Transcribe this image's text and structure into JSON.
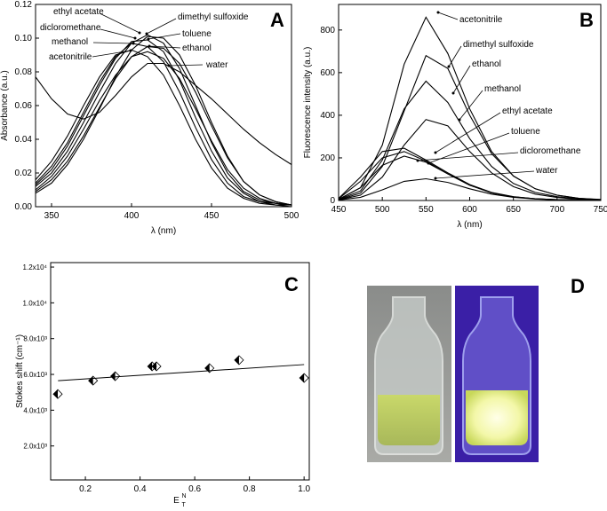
{
  "chart_data": [
    {
      "type": "line",
      "panel": "A",
      "y_label": "Absorbance (a.u.)",
      "x_label": "λ (nm)",
      "color": "#000000",
      "x": [
        340,
        350,
        360,
        370,
        380,
        390,
        400,
        410,
        420,
        430,
        440,
        450,
        460,
        470,
        480,
        490,
        500
      ],
      "xlim": [
        340,
        500
      ],
      "xticks": [
        350,
        400,
        450,
        500
      ],
      "ylim": [
        0,
        0.12
      ],
      "yticks": [
        {
          "value": 0,
          "label": "0.00"
        },
        {
          "value": 0.02,
          "label": "0.02"
        },
        {
          "value": 0.04,
          "label": "0.04"
        },
        {
          "value": 0.06,
          "label": "0.06"
        },
        {
          "value": 0.08,
          "label": "0.08"
        },
        {
          "value": 0.1,
          "label": "0.10"
        },
        {
          "value": 0.12,
          "label": "0.12"
        }
      ],
      "series": [
        {
          "name": "ethyl acetate",
          "values": [
            0.012,
            0.02,
            0.033,
            0.05,
            0.068,
            0.085,
            0.097,
            0.102,
            0.097,
            0.082,
            0.06,
            0.038,
            0.02,
            0.009,
            0.004,
            0.002,
            0.001
          ]
        },
        {
          "name": "dicloromethane",
          "values": [
            0.013,
            0.022,
            0.036,
            0.054,
            0.072,
            0.088,
            0.098,
            0.099,
            0.092,
            0.075,
            0.053,
            0.033,
            0.017,
            0.008,
            0.003,
            0.002,
            0.001
          ]
        },
        {
          "name": "methanol",
          "values": [
            0.014,
            0.024,
            0.038,
            0.056,
            0.074,
            0.089,
            0.097,
            0.095,
            0.086,
            0.068,
            0.047,
            0.028,
            0.014,
            0.006,
            0.003,
            0.001,
            0.001
          ]
        },
        {
          "name": "acetonitrile",
          "values": [
            0.016,
            0.027,
            0.042,
            0.06,
            0.077,
            0.09,
            0.093,
            0.089,
            0.078,
            0.06,
            0.04,
            0.023,
            0.011,
            0.005,
            0.002,
            0.001,
            0
          ]
        },
        {
          "name": "dimethyl sulfoxide",
          "values": [
            0.008,
            0.014,
            0.025,
            0.04,
            0.058,
            0.077,
            0.093,
            0.101,
            0.1,
            0.09,
            0.072,
            0.05,
            0.03,
            0.015,
            0.007,
            0.003,
            0.001
          ]
        },
        {
          "name": "toluene",
          "values": [
            0.009,
            0.016,
            0.027,
            0.042,
            0.059,
            0.076,
            0.089,
            0.095,
            0.094,
            0.085,
            0.068,
            0.048,
            0.029,
            0.015,
            0.007,
            0.003,
            0.001
          ]
        },
        {
          "name": "ethanol",
          "values": [
            0.01,
            0.018,
            0.03,
            0.046,
            0.063,
            0.078,
            0.089,
            0.092,
            0.088,
            0.076,
            0.058,
            0.039,
            0.022,
            0.011,
            0.005,
            0.002,
            0.001
          ]
        },
        {
          "name": "water",
          "values": [
            0.077,
            0.064,
            0.055,
            0.052,
            0.056,
            0.066,
            0.077,
            0.085,
            0.085,
            0.08,
            0.072,
            0.064,
            0.055,
            0.046,
            0.038,
            0.031,
            0.025
          ]
        }
      ]
    },
    {
      "type": "line",
      "panel": "B",
      "y_label": "Fluorescence intensity (a.u.)",
      "x_label": "λ (nm)",
      "color": "#000000",
      "x": [
        450,
        475,
        500,
        525,
        550,
        575,
        600,
        625,
        650,
        675,
        700,
        725,
        750
      ],
      "xlim": [
        450,
        750
      ],
      "xticks": [
        450,
        500,
        550,
        600,
        650,
        700,
        750
      ],
      "ylim": [
        0,
        920
      ],
      "yticks": [
        0,
        200,
        400,
        600,
        800
      ],
      "series": [
        {
          "name": "acetonitrile",
          "values": [
            5,
            60,
            260,
            640,
            860,
            690,
            430,
            230,
            115,
            55,
            25,
            10,
            5
          ]
        },
        {
          "name": "dimethyl sulfoxide",
          "values": [
            3,
            35,
            160,
            420,
            680,
            620,
            400,
            220,
            115,
            55,
            25,
            10,
            4
          ]
        },
        {
          "name": "ethanol",
          "values": [
            4,
            45,
            190,
            430,
            560,
            460,
            290,
            160,
            80,
            38,
            18,
            8,
            3
          ]
        },
        {
          "name": "methanol",
          "values": [
            3,
            25,
            110,
            260,
            380,
            350,
            230,
            130,
            65,
            30,
            14,
            6,
            2
          ]
        },
        {
          "name": "ethyl acetate",
          "values": [
            10,
            110,
            230,
            245,
            190,
            130,
            75,
            38,
            18,
            8,
            4,
            2,
            1
          ]
        },
        {
          "name": "toluene",
          "values": [
            8,
            90,
            200,
            230,
            185,
            125,
            72,
            36,
            17,
            8,
            4,
            2,
            1
          ]
        },
        {
          "name": "dicloromethane",
          "values": [
            5,
            60,
            165,
            208,
            180,
            125,
            72,
            36,
            17,
            8,
            4,
            2,
            1
          ]
        },
        {
          "name": "water",
          "values": [
            2,
            15,
            50,
            90,
            102,
            85,
            55,
            30,
            15,
            7,
            3,
            1,
            0
          ]
        }
      ]
    },
    {
      "type": "scatter",
      "panel": "C",
      "y_label": "Stokes shift (cm⁻¹)",
      "x_label": {
        "base": "E",
        "sub": "T",
        "sup": "N"
      },
      "x": [
        0.099,
        0.228,
        0.309,
        0.444,
        0.46,
        0.654,
        0.762,
        1.0
      ],
      "values": [
        4900,
        5650,
        5900,
        6450,
        6450,
        6350,
        6800,
        5800
      ],
      "fit_line": {
        "x": [
          0.1,
          1.0
        ],
        "values": [
          5650,
          6550
        ]
      },
      "xlim": [
        0.073,
        1.019
      ],
      "xticks": [
        0.2,
        0.4,
        0.6,
        0.8,
        {
          "value": 1,
          "label": "1.0"
        }
      ],
      "ylim": [
        100,
        12250
      ],
      "yticks": [
        {
          "value": 2000,
          "label": "2.0x10³"
        },
        {
          "value": 4000,
          "label": "4.0x10³"
        },
        {
          "value": 6000,
          "label": "6.0x10³"
        },
        {
          "value": 8000,
          "label": "8.0x10³"
        },
        {
          "value": 10000,
          "label": "1.0x10⁴"
        },
        {
          "value": 12000,
          "label": "1.2x10⁴"
        }
      ]
    },
    {
      "type": "image",
      "panel": "D"
    }
  ]
}
